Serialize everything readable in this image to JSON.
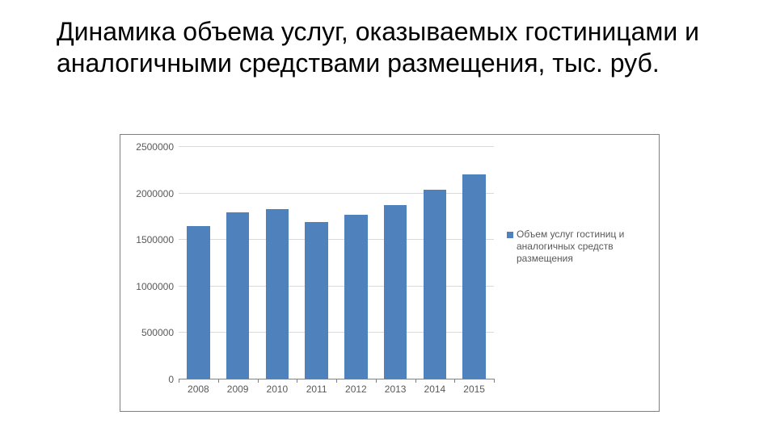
{
  "title": "Динамика объема услуг, оказываемых гостиницами и аналогичными средствами размещения, тыс. руб.",
  "chart": {
    "type": "bar",
    "categories": [
      "2008",
      "2009",
      "2010",
      "2011",
      "2012",
      "2013",
      "2014",
      "2015"
    ],
    "values": [
      1640000,
      1790000,
      1820000,
      1680000,
      1760000,
      1870000,
      2030000,
      2200000
    ],
    "bar_color": "#4f81bd",
    "ylim": [
      0,
      2500000
    ],
    "ytick_step": 500000,
    "ytick_labels": [
      "0",
      "500000",
      "1000000",
      "1500000",
      "2000000",
      "2500000"
    ],
    "grid_color": "#d9d9d9",
    "axis_color": "#808080",
    "tick_label_color": "#595959",
    "tick_label_fontsize": 12,
    "background_color": "#ffffff",
    "border_color": "#7f7f7f",
    "bar_width": 0.58,
    "legend": {
      "swatch_color": "#4f81bd",
      "label": "Объем услуг гостиниц и аналогичных средств размещения"
    }
  }
}
